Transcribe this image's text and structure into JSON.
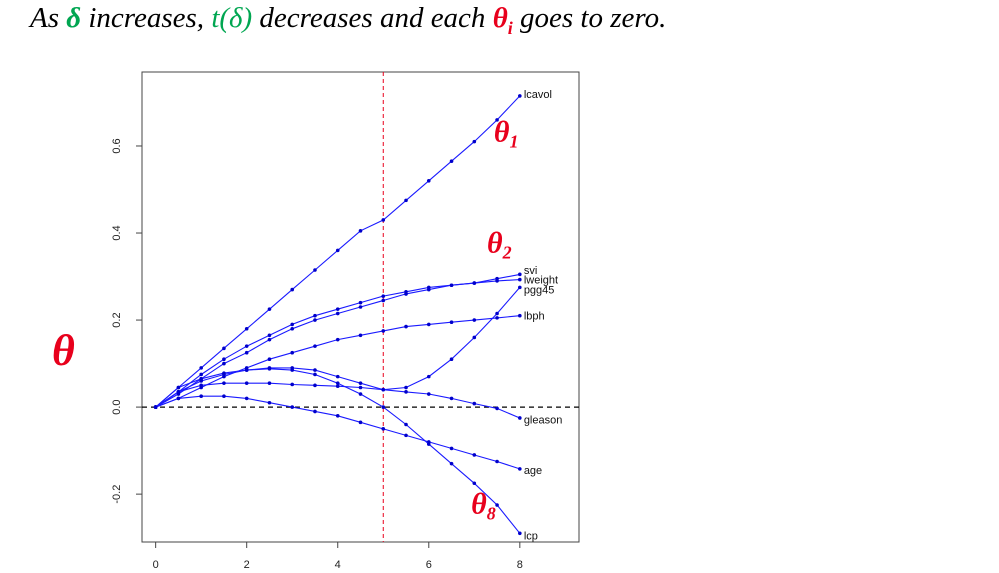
{
  "headline": {
    "p1": "As",
    "p2": "δ",
    "p3": " increases, ",
    "p4": "t(δ)",
    "p5": " decreases and each ",
    "p6": "θ",
    "p6sub": "i",
    "p7": " goes to zero."
  },
  "ylabel": "θ",
  "annotations": [
    {
      "id": "theta-1",
      "text": "θ",
      "sub": "1",
      "x": 7.7,
      "y": 0.61
    },
    {
      "id": "theta-2",
      "text": "θ",
      "sub": "2",
      "x": 7.55,
      "y": 0.355
    },
    {
      "id": "theta-8",
      "text": "θ",
      "sub": "8",
      "x": 7.2,
      "y": -0.245
    }
  ],
  "colors": {
    "series": "#1a1aff",
    "vline": "#e8001c",
    "annot": "#e8001c",
    "green": "#00a651"
  },
  "chart_data": {
    "type": "line",
    "xlim": [
      -0.3,
      9.3
    ],
    "ylim": [
      -0.31,
      0.77
    ],
    "xticks": [
      0,
      2,
      4,
      6,
      8
    ],
    "yticks": [
      -0.2,
      0.0,
      0.2,
      0.4,
      0.6
    ],
    "xtick_labels": [
      "0",
      "2",
      "4",
      "6",
      "8"
    ],
    "ytick_labels": [
      "-0.2",
      "0.0",
      "0.2",
      "0.4",
      "0.6"
    ],
    "hline": 0,
    "vline": 5,
    "series": [
      {
        "name": "lcavol",
        "x": [
          0,
          0.5,
          1,
          1.5,
          2,
          2.5,
          3,
          3.5,
          4,
          4.5,
          5,
          5.5,
          6,
          6.5,
          7,
          7.5,
          8
        ],
        "y": [
          0,
          0.045,
          0.09,
          0.135,
          0.18,
          0.225,
          0.27,
          0.315,
          0.36,
          0.405,
          0.43,
          0.475,
          0.52,
          0.565,
          0.61,
          0.66,
          0.715
        ]
      },
      {
        "name": "svi",
        "x": [
          0,
          0.5,
          1,
          1.5,
          2,
          2.5,
          3,
          3.5,
          4,
          4.5,
          5,
          5.5,
          6,
          6.5,
          7,
          7.5,
          8
        ],
        "y": [
          0,
          0.035,
          0.075,
          0.11,
          0.14,
          0.165,
          0.19,
          0.21,
          0.225,
          0.24,
          0.255,
          0.265,
          0.275,
          0.28,
          0.285,
          0.295,
          0.305
        ]
      },
      {
        "name": "lweight",
        "x": [
          0,
          0.5,
          1,
          1.5,
          2,
          2.5,
          3,
          3.5,
          4,
          4.5,
          5,
          5.5,
          6,
          6.5,
          7,
          7.5,
          8
        ],
        "y": [
          0,
          0.03,
          0.065,
          0.1,
          0.125,
          0.155,
          0.18,
          0.2,
          0.215,
          0.23,
          0.245,
          0.26,
          0.27,
          0.28,
          0.285,
          0.29,
          0.293
        ]
      },
      {
        "name": "pgg45",
        "x": [
          0,
          0.5,
          1,
          1.5,
          2,
          2.5,
          3,
          3.5,
          4,
          4.5,
          5,
          5.5,
          6,
          6.5,
          7,
          7.5,
          8
        ],
        "y": [
          0,
          0.035,
          0.06,
          0.075,
          0.085,
          0.09,
          0.09,
          0.085,
          0.07,
          0.055,
          0.04,
          0.045,
          0.07,
          0.11,
          0.16,
          0.215,
          0.275
        ]
      },
      {
        "name": "lbph",
        "x": [
          0,
          0.5,
          1,
          1.5,
          2,
          2.5,
          3,
          3.5,
          4,
          4.5,
          5,
          5.5,
          6,
          6.5,
          7,
          7.5,
          8
        ],
        "y": [
          0,
          0.02,
          0.045,
          0.07,
          0.09,
          0.11,
          0.125,
          0.14,
          0.155,
          0.165,
          0.175,
          0.185,
          0.19,
          0.195,
          0.2,
          0.205,
          0.21
        ]
      },
      {
        "name": "gleason",
        "x": [
          0,
          0.5,
          1,
          1.5,
          2,
          2.5,
          3,
          3.5,
          4,
          4.5,
          5,
          5.5,
          6,
          6.5,
          7,
          7.5,
          8
        ],
        "y": [
          0,
          0.035,
          0.05,
          0.055,
          0.055,
          0.055,
          0.052,
          0.05,
          0.048,
          0.045,
          0.04,
          0.035,
          0.03,
          0.02,
          0.008,
          -0.003,
          -0.025
        ]
      },
      {
        "name": "age",
        "x": [
          0,
          0.5,
          1,
          1.5,
          2,
          2.5,
          3,
          3.5,
          4,
          4.5,
          5,
          5.5,
          6,
          6.5,
          7,
          7.5,
          8
        ],
        "y": [
          0,
          0.02,
          0.025,
          0.025,
          0.02,
          0.01,
          0.0,
          -0.01,
          -0.02,
          -0.035,
          -0.05,
          -0.065,
          -0.08,
          -0.095,
          -0.11,
          -0.125,
          -0.142
        ]
      },
      {
        "name": "lcp",
        "x": [
          0,
          0.5,
          1,
          1.5,
          2,
          2.5,
          3,
          3.5,
          4,
          4.5,
          5,
          5.5,
          6,
          6.5,
          7,
          7.5,
          8
        ],
        "y": [
          0,
          0.045,
          0.065,
          0.078,
          0.085,
          0.088,
          0.085,
          0.075,
          0.055,
          0.03,
          0.0,
          -0.04,
          -0.085,
          -0.13,
          -0.175,
          -0.225,
          -0.29
        ]
      }
    ],
    "end_labels": [
      {
        "series": "lcavol",
        "text": "lcavol",
        "y": 0.72
      },
      {
        "series": "svi",
        "text": "svi",
        "y": 0.315
      },
      {
        "series": "lweight",
        "text": "lweight",
        "y": 0.293
      },
      {
        "series": "pgg45",
        "text": "pgg45",
        "y": 0.27
      },
      {
        "series": "lbph",
        "text": "lbph",
        "y": 0.21
      },
      {
        "series": "gleason",
        "text": "gleason",
        "y": -0.028
      },
      {
        "series": "age",
        "text": "age",
        "y": -0.145
      },
      {
        "series": "lcp",
        "text": "lcp",
        "y": -0.295
      }
    ]
  }
}
